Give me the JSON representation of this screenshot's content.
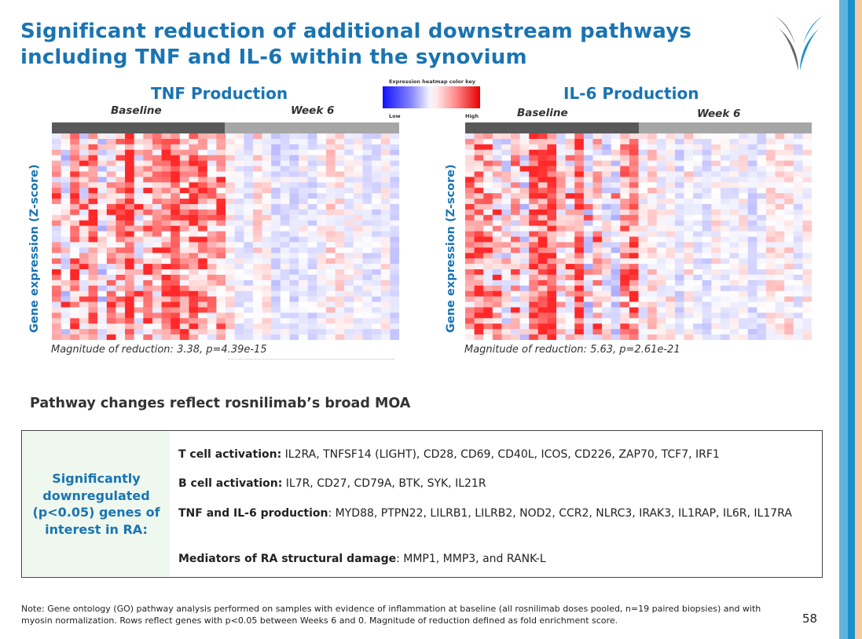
{
  "slide": {
    "title": "Significant reduction of additional downstream pathways including TNF and IL-6 within the synovium",
    "page_number": "58"
  },
  "colors": {
    "accent": "#1a74b3",
    "heat_low": "#1010ff",
    "heat_mid": "#ffffff",
    "heat_high": "#e60000",
    "baseline_bar": "#595959",
    "week6_bar": "#a6a6a6",
    "box_fill": "#eef8ee"
  },
  "heatmap_key": {
    "title": "Expression heatmap color key",
    "low": "Low",
    "high": "High"
  },
  "panels": [
    {
      "title": "TNF Production",
      "baseline_label": "Baseline",
      "week6_label": "Week 6",
      "ylabel": "Gene expression (Z-score)",
      "magnitude": "Magnitude of reduction: 3.38, p=4.39e-15"
    },
    {
      "title": "IL-6 Production",
      "baseline_label": "Baseline",
      "week6_label": "Week 6",
      "ylabel": "Gene expression (Z-score)",
      "magnitude": "Magnitude of reduction: 5.63, p=2.61e-21"
    }
  ],
  "moa": {
    "heading": "Pathway changes reflect rosnilimab’s broad MOA",
    "box_label": "Significantly downregulated (p<0.05) genes of interest in RA:",
    "rows": [
      {
        "label": "T cell activation:",
        "genes": " IL2RA, TNFSF14 (LIGHT), CD28, CD69, CD40L, ICOS, CD226, ZAP70, TCF7, IRF1"
      },
      {
        "label": "B cell activation:",
        "genes": " IL7R, CD27, CD79A, BTK, SYK, IL21R"
      },
      {
        "label": "TNF and IL-6 production",
        "genes": ": MYD88, PTPN22, LILRB1, LILRB2, NOD2, CCR2, NLRC3, IRAK3, IL1RAP, IL6R, IL17RA"
      },
      {
        "label": "Mediators of RA structural damage",
        "genes": ": MMP1, MMP3, and RANK-L"
      }
    ]
  },
  "note": "Note: Gene ontology (GO) pathway analysis performed on samples with evidence of inflammation at baseline (all rosnilimab doses pooled, n=19 paired biopsies) and with myosin normalization. Rows reflect genes with p<0.05 between Weeks 6 and 0.  Magnitude of reduction defined as fold enrichment score."
}
